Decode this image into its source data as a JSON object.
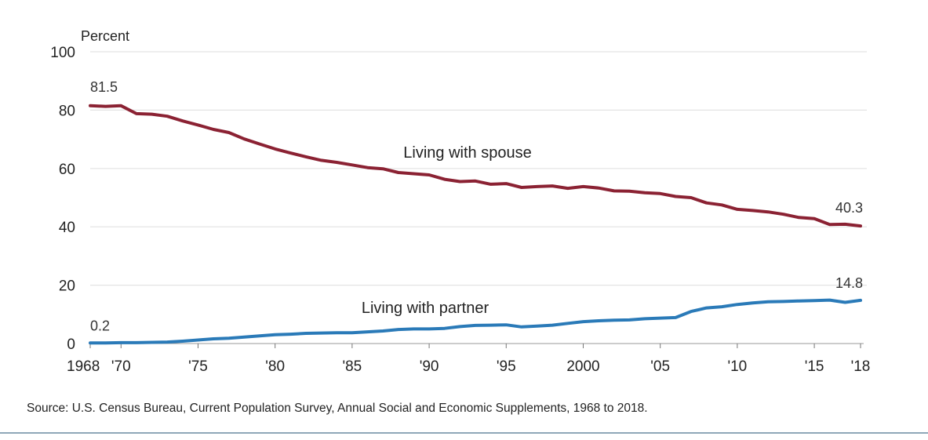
{
  "chart_data": {
    "type": "line",
    "ylabel": "Percent",
    "ylim": [
      0,
      100
    ],
    "xlim": [
      1968,
      2018
    ],
    "yticks": [
      0,
      20,
      40,
      60,
      80,
      100
    ],
    "xticks": [
      {
        "x": 1968,
        "label": "1968"
      },
      {
        "x": 1970,
        "label": "'70"
      },
      {
        "x": 1975,
        "label": "'75"
      },
      {
        "x": 1980,
        "label": "'80"
      },
      {
        "x": 1985,
        "label": "'85"
      },
      {
        "x": 1990,
        "label": "'90"
      },
      {
        "x": 1995,
        "label": "'95"
      },
      {
        "x": 2000,
        "label": "2000"
      },
      {
        "x": 2005,
        "label": "'05"
      },
      {
        "x": 2010,
        "label": "'10"
      },
      {
        "x": 2015,
        "label": "'15"
      },
      {
        "x": 2018,
        "label": "'18"
      }
    ],
    "grid": true,
    "series": [
      {
        "name": "Living with spouse",
        "color": "#8b2233",
        "x": [
          1968,
          1969,
          1970,
          1971,
          1972,
          1973,
          1974,
          1975,
          1976,
          1977,
          1978,
          1979,
          1980,
          1981,
          1982,
          1983,
          1984,
          1985,
          1986,
          1987,
          1988,
          1989,
          1990,
          1991,
          1992,
          1993,
          1994,
          1995,
          1996,
          1997,
          1998,
          1999,
          2000,
          2001,
          2002,
          2003,
          2004,
          2005,
          2006,
          2007,
          2008,
          2009,
          2010,
          2011,
          2012,
          2013,
          2014,
          2015,
          2016,
          2017,
          2018
        ],
        "values": [
          81.5,
          81.3,
          81.5,
          78.8,
          78.6,
          77.9,
          76.3,
          74.9,
          73.4,
          72.3,
          70.1,
          68.4,
          66.7,
          65.3,
          64.0,
          62.8,
          62.1,
          61.2,
          60.3,
          59.9,
          58.6,
          58.2,
          57.8,
          56.3,
          55.5,
          55.7,
          54.6,
          54.8,
          53.5,
          53.8,
          54.0,
          53.2,
          53.8,
          53.3,
          52.3,
          52.2,
          51.7,
          51.4,
          50.4,
          50.0,
          48.2,
          47.5,
          46.0,
          45.6,
          45.1,
          44.3,
          43.2,
          42.8,
          40.8,
          40.9,
          40.3
        ],
        "start_label": "81.5",
        "end_label": "40.3"
      },
      {
        "name": "Living with partner",
        "color": "#2a7ab8",
        "x": [
          1968,
          1969,
          1970,
          1971,
          1972,
          1973,
          1974,
          1975,
          1976,
          1977,
          1978,
          1979,
          1980,
          1981,
          1982,
          1983,
          1984,
          1985,
          1986,
          1987,
          1988,
          1989,
          1990,
          1991,
          1992,
          1993,
          1994,
          1995,
          1996,
          1997,
          1998,
          1999,
          2000,
          2001,
          2002,
          2003,
          2004,
          2005,
          2006,
          2007,
          2008,
          2009,
          2010,
          2011,
          2012,
          2013,
          2014,
          2015,
          2016,
          2017,
          2018
        ],
        "values": [
          0.2,
          0.2,
          0.3,
          0.3,
          0.4,
          0.5,
          0.8,
          1.2,
          1.6,
          1.8,
          2.2,
          2.6,
          3.0,
          3.2,
          3.5,
          3.6,
          3.7,
          3.7,
          4.0,
          4.3,
          4.8,
          5.0,
          5.0,
          5.2,
          5.8,
          6.2,
          6.3,
          6.4,
          5.7,
          6.0,
          6.3,
          6.9,
          7.5,
          7.8,
          8.0,
          8.1,
          8.5,
          8.7,
          8.9,
          11.0,
          12.2,
          12.6,
          13.4,
          13.9,
          14.3,
          14.4,
          14.6,
          14.7,
          14.9,
          14.1,
          14.8
        ],
        "start_label": "0.2",
        "end_label": "14.8"
      }
    ]
  },
  "source_text": "Source: U.S. Census Bureau, Current Population Survey, Annual Social and Economic Supplements, 1968 to 2018."
}
